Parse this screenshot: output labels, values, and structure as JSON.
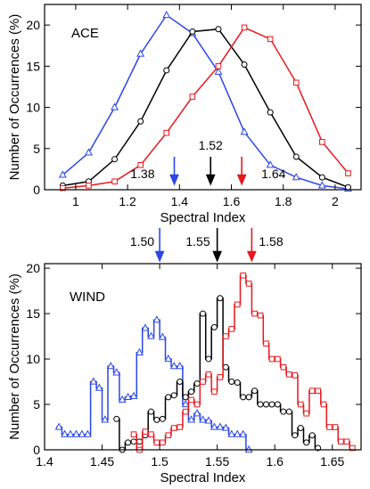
{
  "colors": {
    "blue": "#2a46e8",
    "black": "#000000",
    "red": "#e8171c"
  },
  "chart_data": [
    {
      "type": "line",
      "panel_label": "ACE",
      "xlabel": "Spectral Index",
      "ylabel": "Number of Occurrences (%)",
      "xlim": [
        0.88,
        2.1
      ],
      "ylim": [
        0,
        22.5
      ],
      "xticks": [
        1,
        1.2,
        1.4,
        1.6,
        1.8,
        2
      ],
      "yticks": [
        0,
        5,
        10,
        15,
        20
      ],
      "xtick_labels": [
        "1",
        "1.2",
        "1.4",
        "1.6",
        "1.8",
        "2"
      ],
      "ytick_labels": [
        "0",
        "5",
        "10",
        "15",
        "20"
      ],
      "series": [
        {
          "color": "blue",
          "marker": "triangle",
          "x": [
            0.95,
            1.05,
            1.15,
            1.25,
            1.35,
            1.45,
            1.55,
            1.65,
            1.75,
            1.85,
            1.95,
            2.05
          ],
          "y": [
            1.8,
            4.5,
            10.0,
            16.5,
            21.2,
            19.0,
            14.3,
            7.0,
            3.0,
            1.5,
            0.5,
            0.1
          ]
        },
        {
          "color": "black",
          "marker": "circle",
          "x": [
            0.95,
            1.05,
            1.15,
            1.25,
            1.35,
            1.45,
            1.55,
            1.65,
            1.75,
            1.85,
            1.95,
            2.05
          ],
          "y": [
            0.5,
            1.0,
            3.7,
            8.3,
            14.5,
            19.2,
            19.5,
            15.2,
            9.4,
            4.0,
            1.5,
            0.3
          ]
        },
        {
          "color": "red",
          "marker": "square",
          "x": [
            0.95,
            1.05,
            1.15,
            1.25,
            1.35,
            1.45,
            1.55,
            1.65,
            1.75,
            1.85,
            1.95,
            2.05
          ],
          "y": [
            0.2,
            0.5,
            1.0,
            3.0,
            6.9,
            11.3,
            15.0,
            19.7,
            18.3,
            13.0,
            5.8,
            2.0
          ]
        }
      ],
      "markers": [
        {
          "value": 1.38,
          "label": "1.38",
          "color": "blue"
        },
        {
          "value": 1.52,
          "label": "1.52",
          "color": "black"
        },
        {
          "value": 1.64,
          "label": "1.64",
          "color": "red"
        }
      ]
    },
    {
      "type": "line",
      "step": true,
      "panel_label": "WIND",
      "xlabel": "Spectral Index",
      "ylabel": "Number of Occurrences (%)",
      "xlim": [
        1.4,
        1.675
      ],
      "ylim": [
        0,
        20.5
      ],
      "xticks": [
        1.4,
        1.45,
        1.5,
        1.55,
        1.6,
        1.65
      ],
      "yticks": [
        0,
        5,
        10,
        15,
        20
      ],
      "xtick_labels": [
        "1.4",
        "1.45",
        "1.5",
        "1.55",
        "1.6",
        "1.65"
      ],
      "ytick_labels": [
        "0",
        "5",
        "10",
        "15",
        "20"
      ],
      "series": [
        {
          "color": "blue",
          "marker": "triangle",
          "x": [
            1.4125,
            1.4175,
            1.4225,
            1.4275,
            1.4325,
            1.4375,
            1.4425,
            1.4475,
            1.4525,
            1.4575,
            1.4625,
            1.4675,
            1.4725,
            1.4775,
            1.4825,
            1.4875,
            1.4925,
            1.4975,
            1.5025,
            1.5075,
            1.5125,
            1.5175,
            1.5225,
            1.5275,
            1.5325,
            1.5375,
            1.5425,
            1.5475,
            1.5525,
            1.5575,
            1.5625,
            1.5675,
            1.5725,
            1.5775
          ],
          "y": [
            2.5,
            1.7,
            1.7,
            1.7,
            1.7,
            1.7,
            7.5,
            6.8,
            3.3,
            9.2,
            8.5,
            5.5,
            5.8,
            5.9,
            10.7,
            13.4,
            12.5,
            14.3,
            12.4,
            10.0,
            9.2,
            9.2,
            5.0,
            3.3,
            4.0,
            3.3,
            3.2,
            2.5,
            2.5,
            2.4,
            1.7,
            1.7,
            1.7,
            0.0
          ]
        },
        {
          "color": "black",
          "marker": "circle",
          "x": [
            1.4625,
            1.4675,
            1.4725,
            1.4775,
            1.4825,
            1.4875,
            1.4925,
            1.4975,
            1.5025,
            1.5075,
            1.5125,
            1.5175,
            1.5225,
            1.5275,
            1.5325,
            1.5375,
            1.5425,
            1.5475,
            1.5525,
            1.5575,
            1.5625,
            1.5675,
            1.5725,
            1.5775,
            1.5825,
            1.5875,
            1.5925,
            1.5975,
            1.6025,
            1.6075,
            1.6125,
            1.6175,
            1.6225,
            1.6275,
            1.6325,
            1.6375
          ],
          "y": [
            3.4,
            0.0,
            0.8,
            0.9,
            0.9,
            1.6,
            4.2,
            3.3,
            3.4,
            5.8,
            6.0,
            7.5,
            5.8,
            6.4,
            7.3,
            15.0,
            10.0,
            13.5,
            16.7,
            9.1,
            7.5,
            7.4,
            5.8,
            5.8,
            6.5,
            5.0,
            5.0,
            5.0,
            5.0,
            4.2,
            4.2,
            1.6,
            2.4,
            0.8,
            1.6,
            0.2
          ]
        },
        {
          "color": "red",
          "marker": "square",
          "x": [
            1.4775,
            1.4825,
            1.4875,
            1.4925,
            1.4975,
            1.5025,
            1.5075,
            1.5125,
            1.5175,
            1.5225,
            1.5275,
            1.5325,
            1.5375,
            1.5425,
            1.5475,
            1.5525,
            1.5575,
            1.5625,
            1.5675,
            1.5725,
            1.5775,
            1.5825,
            1.5875,
            1.5925,
            1.5975,
            1.6025,
            1.6075,
            1.6125,
            1.6175,
            1.6225,
            1.6275,
            1.6325,
            1.6375,
            1.6425,
            1.6475,
            1.6525,
            1.6575,
            1.6625,
            1.6675
          ],
          "y": [
            1.7,
            0.0,
            2.0,
            1.7,
            0.8,
            0.8,
            1.6,
            2.4,
            2.5,
            4.2,
            5.5,
            5.0,
            7.5,
            8.3,
            6.4,
            8.0,
            12.5,
            13.3,
            16.0,
            19.2,
            18.3,
            15.0,
            14.8,
            11.7,
            10.0,
            10.0,
            9.1,
            8.3,
            8.2,
            5.0,
            4.0,
            6.5,
            6.5,
            5.0,
            2.5,
            2.5,
            0.9,
            0.9,
            0.2
          ]
        }
      ],
      "markers": [
        {
          "value": 1.5,
          "label": "1.50",
          "color": "blue"
        },
        {
          "value": 1.55,
          "label": "1.55",
          "color": "black"
        },
        {
          "value": 1.58,
          "label": "1.58",
          "color": "red"
        }
      ]
    }
  ]
}
